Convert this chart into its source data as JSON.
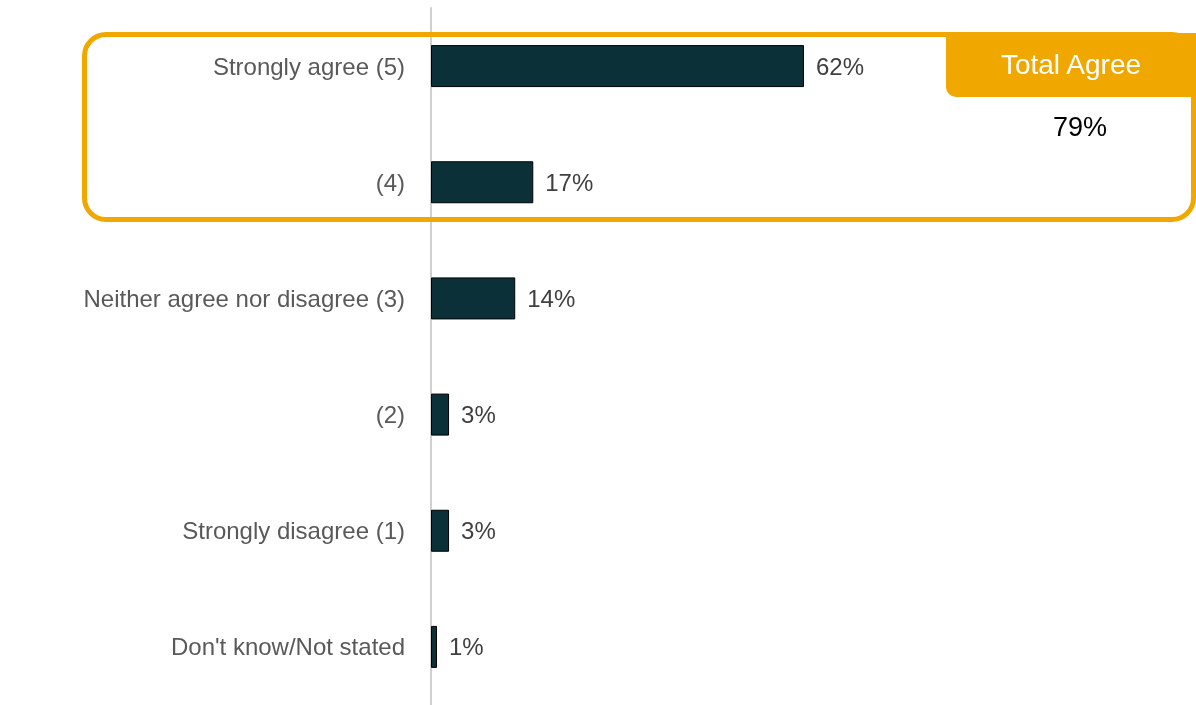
{
  "chart_data": {
    "type": "bar",
    "orientation": "horizontal",
    "categories": [
      "Strongly agree (5)",
      "(4)",
      "Neither agree nor disagree (3)",
      "(2)",
      "Strongly disagree (1)",
      "Don't know/Not stated"
    ],
    "values": [
      62,
      17,
      14,
      3,
      3,
      1
    ],
    "value_labels": [
      "62%",
      "17%",
      "14%",
      "3%",
      "3%",
      "1%"
    ],
    "color": "#0b3038",
    "annotations": [
      "Total Agree",
      "79%"
    ],
    "grid": false
  }
}
